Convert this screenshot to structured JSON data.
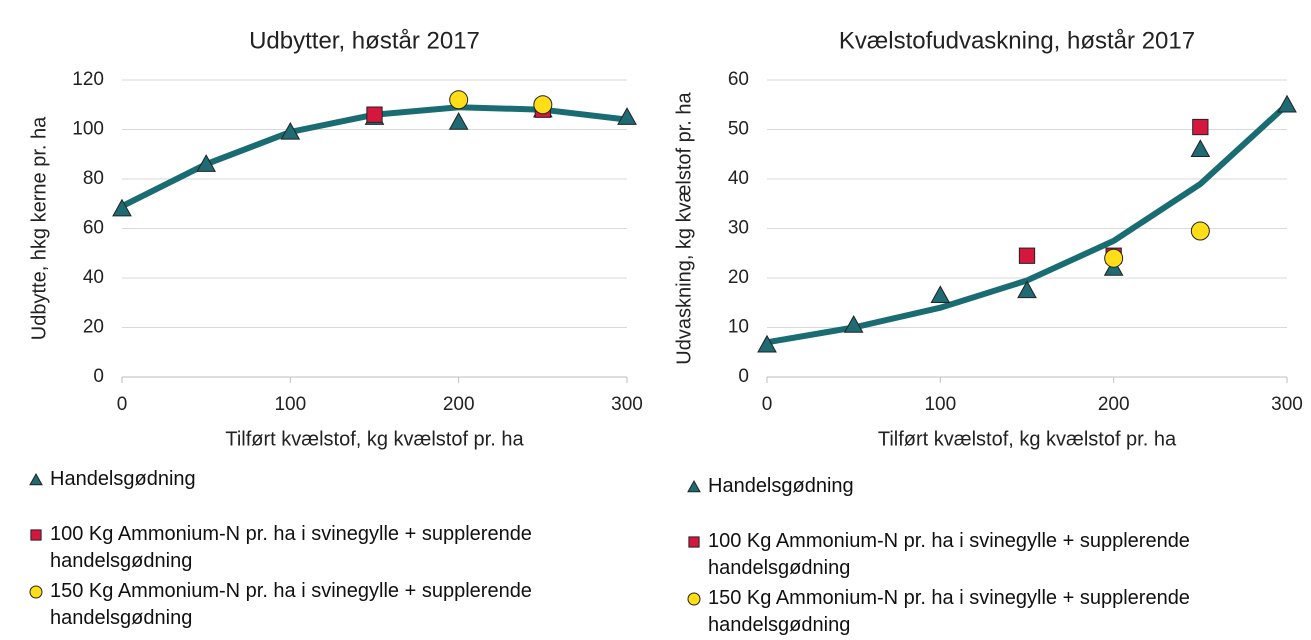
{
  "chart_data": [
    {
      "type": "scatter",
      "title": "Udbytter, høstår 2017",
      "x_label": "Tilført kvælstof, kg kvælstof pr. ha",
      "y_label": "Udbytte, hkg kerne pr. ha",
      "xlim": [
        0,
        300
      ],
      "xticks": [
        0,
        100,
        200,
        300
      ],
      "ylim": [
        0,
        120
      ],
      "yticks": [
        0,
        20,
        40,
        60,
        80,
        100,
        120
      ],
      "grid": true,
      "series": [
        {
          "name": "Handelsgødning",
          "color": "#1e6b73",
          "marker": "triangle",
          "x": [
            0,
            50,
            100,
            150,
            200,
            250,
            300
          ],
          "values": [
            68,
            86,
            99,
            105,
            103,
            108,
            105
          ]
        },
        {
          "name": "100 Kg Ammonium-N pr. ha i svinegylle + supplerende handelsgødning",
          "color": "#d6173d",
          "marker": "square",
          "x": [
            150,
            250
          ],
          "values": [
            106,
            108
          ]
        },
        {
          "name": "150 Kg Ammonium-N pr. ha i svinegylle + supplerende handelsgødning",
          "color": "#ffde17",
          "marker": "circle",
          "x": [
            200,
            250
          ],
          "values": [
            112,
            110
          ]
        }
      ],
      "trendline": {
        "color": "#1a6c73",
        "x": [
          0,
          50,
          100,
          150,
          200,
          250,
          300
        ],
        "values": [
          69,
          86,
          99,
          106,
          109,
          108,
          104
        ]
      }
    },
    {
      "type": "scatter",
      "title": "Kvælstofudvaskning, høstår 2017",
      "x_label": "Tilført kvælstof, kg kvælstof pr. ha",
      "y_label": "Udvaskning, kg kvælstof pr. ha",
      "xlim": [
        0,
        300
      ],
      "xticks": [
        0,
        100,
        200,
        300
      ],
      "ylim": [
        0,
        60
      ],
      "yticks": [
        0,
        10,
        20,
        30,
        40,
        50,
        60
      ],
      "grid": true,
      "series": [
        {
          "name": "Handelsgødning",
          "color": "#1e6b73",
          "marker": "triangle",
          "x": [
            0,
            50,
            100,
            150,
            200,
            250,
            300
          ],
          "values": [
            6.5,
            10.5,
            16.5,
            17.5,
            22,
            46,
            55
          ]
        },
        {
          "name": "100 Kg Ammonium-N pr. ha i svinegylle + supplerende handelsgødning",
          "color": "#d6173d",
          "marker": "square",
          "x": [
            150,
            200,
            250
          ],
          "values": [
            24.5,
            24.5,
            50.5
          ]
        },
        {
          "name": "150 Kg Ammonium-N pr. ha i svinegylle + supplerende handelsgødning",
          "color": "#ffde17",
          "marker": "circle",
          "x": [
            200,
            250
          ],
          "values": [
            24,
            29.5
          ]
        }
      ],
      "trendline": {
        "color": "#1a6c73",
        "x": [
          0,
          50,
          100,
          150,
          200,
          250,
          300
        ],
        "values": [
          7,
          10,
          14,
          19.5,
          27.5,
          39,
          55
        ]
      }
    }
  ]
}
